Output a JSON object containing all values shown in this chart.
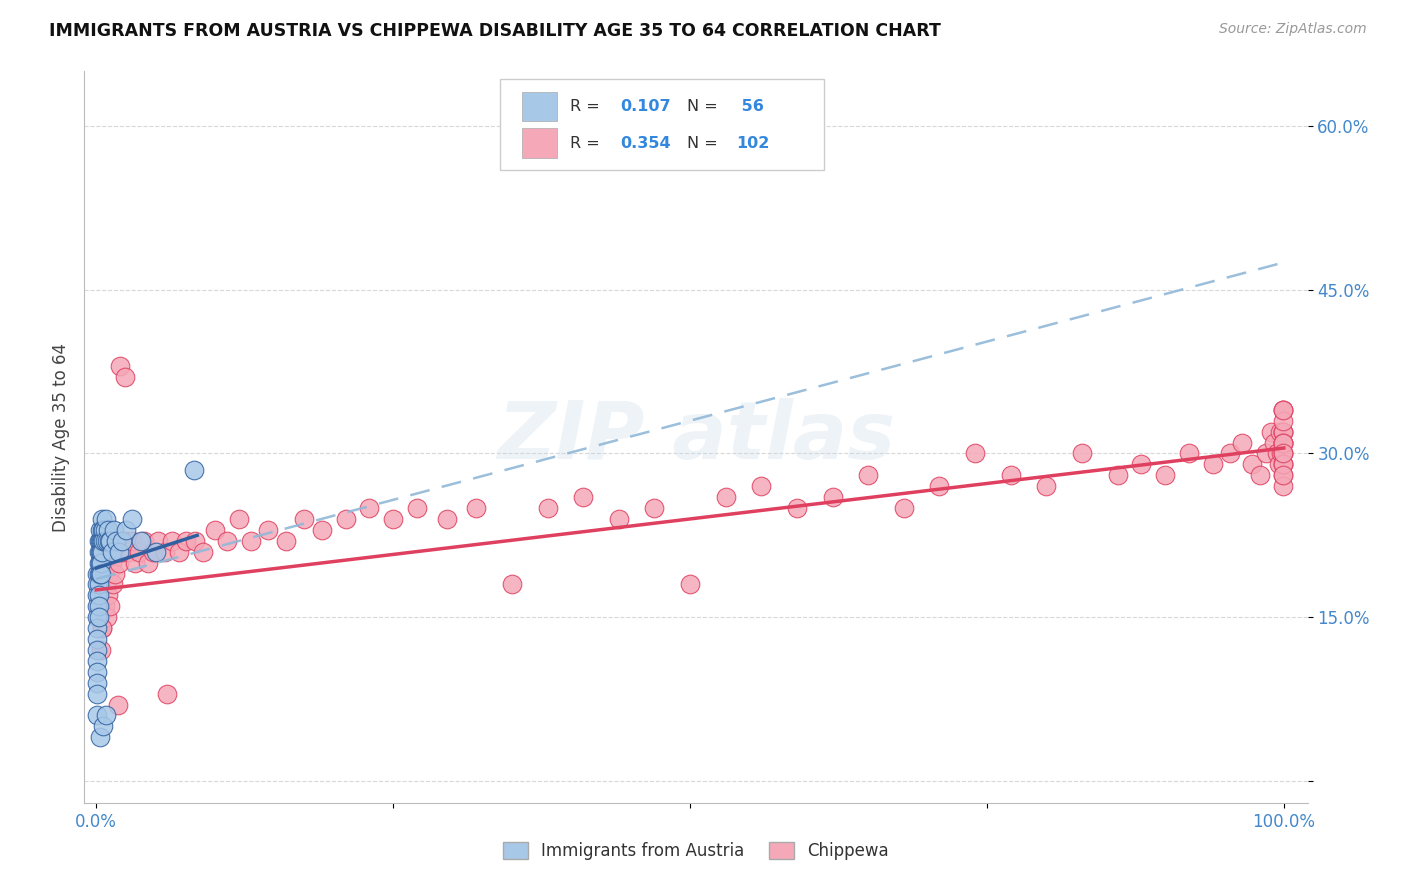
{
  "title": "IMMIGRANTS FROM AUSTRIA VS CHIPPEWA DISABILITY AGE 35 TO 64 CORRELATION CHART",
  "source": "Source: ZipAtlas.com",
  "ylabel": "Disability Age 35 to 64",
  "xlim": [
    -0.01,
    1.02
  ],
  "ylim": [
    -0.02,
    0.65
  ],
  "yticks": [
    0.0,
    0.15,
    0.3,
    0.45,
    0.6
  ],
  "ytick_labels": [
    "",
    "15.0%",
    "30.0%",
    "45.0%",
    "60.0%"
  ],
  "xticks": [
    0.0,
    0.25,
    0.5,
    0.75,
    1.0
  ],
  "xtick_labels": [
    "0.0%",
    "",
    "",
    "",
    "100.0%"
  ],
  "blue_color": "#a8c8e8",
  "pink_color": "#f4a8b8",
  "blue_line_color": "#3060a0",
  "pink_line_color": "#e04060",
  "dashed_line_color": "#90b8d8",
  "background_color": "#ffffff",
  "grid_color": "#d8d8d8",
  "austria_x": [
    0.001,
    0.001,
    0.001,
    0.001,
    0.001,
    0.001,
    0.001,
    0.001,
    0.001,
    0.001,
    0.001,
    0.001,
    0.001,
    0.002,
    0.002,
    0.002,
    0.002,
    0.002,
    0.002,
    0.002,
    0.002,
    0.003,
    0.003,
    0.003,
    0.003,
    0.003,
    0.003,
    0.004,
    0.004,
    0.004,
    0.004,
    0.005,
    0.005,
    0.005,
    0.005,
    0.006,
    0.006,
    0.006,
    0.007,
    0.007,
    0.008,
    0.008,
    0.009,
    0.01,
    0.011,
    0.012,
    0.013,
    0.015,
    0.017,
    0.019,
    0.022,
    0.025,
    0.03,
    0.038,
    0.05,
    0.082
  ],
  "austria_y": [
    0.19,
    0.18,
    0.17,
    0.16,
    0.15,
    0.14,
    0.13,
    0.12,
    0.11,
    0.1,
    0.09,
    0.08,
    0.06,
    0.22,
    0.21,
    0.2,
    0.19,
    0.18,
    0.17,
    0.16,
    0.15,
    0.23,
    0.22,
    0.21,
    0.2,
    0.19,
    0.04,
    0.22,
    0.21,
    0.2,
    0.19,
    0.24,
    0.23,
    0.22,
    0.21,
    0.23,
    0.22,
    0.05,
    0.23,
    0.22,
    0.24,
    0.06,
    0.22,
    0.23,
    0.22,
    0.22,
    0.21,
    0.23,
    0.22,
    0.21,
    0.22,
    0.23,
    0.24,
    0.22,
    0.21,
    0.285
  ],
  "chippewa_x": [
    0.004,
    0.005,
    0.007,
    0.008,
    0.009,
    0.01,
    0.011,
    0.012,
    0.013,
    0.014,
    0.015,
    0.016,
    0.018,
    0.019,
    0.02,
    0.022,
    0.024,
    0.026,
    0.028,
    0.03,
    0.033,
    0.036,
    0.04,
    0.044,
    0.048,
    0.052,
    0.058,
    0.064,
    0.07,
    0.076,
    0.083,
    0.09,
    0.1,
    0.11,
    0.12,
    0.13,
    0.145,
    0.16,
    0.175,
    0.19,
    0.21,
    0.23,
    0.25,
    0.27,
    0.295,
    0.32,
    0.35,
    0.38,
    0.41,
    0.44,
    0.47,
    0.5,
    0.53,
    0.56,
    0.59,
    0.62,
    0.65,
    0.68,
    0.71,
    0.74,
    0.77,
    0.8,
    0.83,
    0.86,
    0.88,
    0.9,
    0.92,
    0.94,
    0.955,
    0.965,
    0.973,
    0.98,
    0.985,
    0.989,
    0.992,
    0.994,
    0.996,
    0.997,
    0.998,
    0.999,
    0.999,
    0.999,
    0.999,
    0.999,
    0.999,
    0.999,
    0.999,
    0.999,
    0.999,
    0.999,
    0.999,
    0.999,
    0.999,
    0.999,
    0.999,
    0.999,
    0.999,
    0.999,
    0.999,
    0.005,
    0.018,
    0.06
  ],
  "chippewa_y": [
    0.12,
    0.14,
    0.16,
    0.18,
    0.15,
    0.17,
    0.19,
    0.16,
    0.2,
    0.18,
    0.21,
    0.19,
    0.22,
    0.2,
    0.38,
    0.21,
    0.37,
    0.22,
    0.21,
    0.22,
    0.2,
    0.21,
    0.22,
    0.2,
    0.21,
    0.22,
    0.21,
    0.22,
    0.21,
    0.22,
    0.22,
    0.21,
    0.23,
    0.22,
    0.24,
    0.22,
    0.23,
    0.22,
    0.24,
    0.23,
    0.24,
    0.25,
    0.24,
    0.25,
    0.24,
    0.25,
    0.18,
    0.25,
    0.26,
    0.24,
    0.25,
    0.18,
    0.26,
    0.27,
    0.25,
    0.26,
    0.28,
    0.25,
    0.27,
    0.3,
    0.28,
    0.27,
    0.3,
    0.28,
    0.29,
    0.28,
    0.3,
    0.29,
    0.3,
    0.31,
    0.29,
    0.28,
    0.3,
    0.32,
    0.31,
    0.3,
    0.29,
    0.32,
    0.3,
    0.34,
    0.32,
    0.31,
    0.3,
    0.28,
    0.29,
    0.32,
    0.31,
    0.34,
    0.3,
    0.32,
    0.27,
    0.29,
    0.31,
    0.33,
    0.29,
    0.31,
    0.28,
    0.34,
    0.3,
    0.14,
    0.07,
    0.08
  ],
  "austria_line_x": [
    0.0,
    0.085
  ],
  "austria_line_y": [
    0.195,
    0.225
  ],
  "chippewa_line_x": [
    0.0,
    1.0
  ],
  "chippewa_line_y": [
    0.175,
    0.305
  ],
  "dashed_line_x": [
    0.0,
    1.0
  ],
  "dashed_line_y": [
    0.185,
    0.475
  ]
}
